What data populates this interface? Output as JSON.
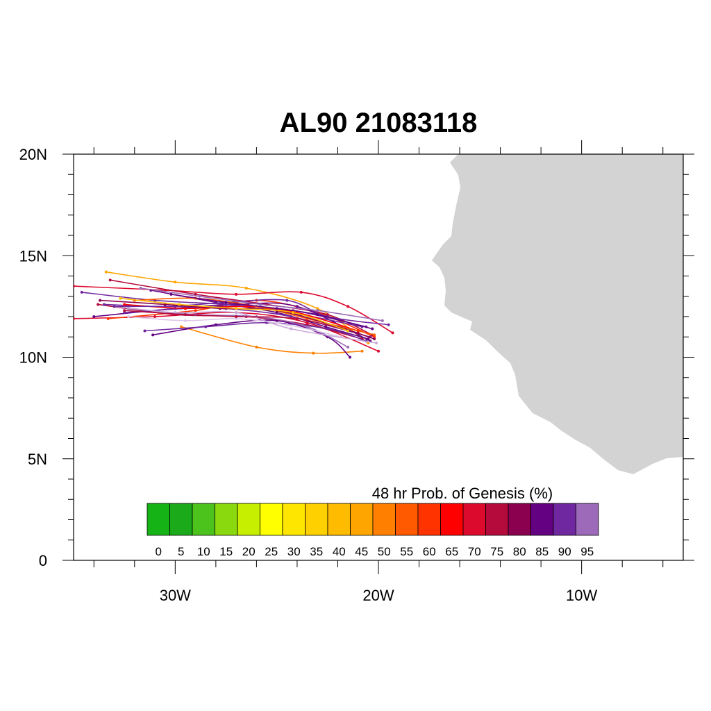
{
  "title": "AL90 21083118",
  "map": {
    "lat_range": [
      0,
      20
    ],
    "lon_range": [
      -35,
      -5
    ],
    "lat_labels": [
      {
        "lat": 20,
        "text": "20N"
      },
      {
        "lat": 15,
        "text": "15N"
      },
      {
        "lat": 10,
        "text": "10N"
      },
      {
        "lat": 5,
        "text": "5N"
      },
      {
        "lat": 0,
        "text": "0"
      }
    ],
    "lon_labels": [
      {
        "lon": -30,
        "text": "30W"
      },
      {
        "lon": -20,
        "text": "20W"
      },
      {
        "lon": -10,
        "text": "10W"
      }
    ],
    "land_color": "#d3d3d3",
    "land_region": "West Africa coast"
  },
  "colorbar": {
    "title": "48 hr Prob. of Genesis (%)",
    "labels": [
      "0",
      "5",
      "10",
      "15",
      "20",
      "25",
      "30",
      "35",
      "40",
      "45",
      "50",
      "55",
      "60",
      "65",
      "70",
      "75",
      "80",
      "85",
      "90",
      "95"
    ],
    "colors": [
      "#16b316",
      "#1aaa1a",
      "#4cc21c",
      "#8ad80e",
      "#c6ef00",
      "#ffff00",
      "#ffe600",
      "#ffd000",
      "#ffbb00",
      "#ffa500",
      "#ff8000",
      "#ff5a00",
      "#ff3300",
      "#ff0000",
      "#dc0a2d",
      "#b40a3c",
      "#8c0050",
      "#640082",
      "#7028a0",
      "#9c6ab9"
    ]
  },
  "chart_data": {
    "type": "map-tracks",
    "description_units": "lon (degrees E, negative = W), lat (degrees N)",
    "tracks": [
      {
        "color": "#ffa500",
        "points": [
          [
            -33.4,
            14.2
          ],
          [
            -30,
            13.7
          ],
          [
            -26.5,
            13.4
          ],
          [
            -23,
            12.4
          ],
          [
            -20.5,
            10.7
          ]
        ]
      },
      {
        "color": "#ff8000",
        "points": [
          [
            -29.7,
            11.5
          ],
          [
            -26,
            10.5
          ],
          [
            -23.2,
            10.2
          ],
          [
            -20.8,
            10.3
          ]
        ]
      },
      {
        "color": "#dc0a2d",
        "points": [
          [
            -35,
            13.5
          ],
          [
            -30.5,
            13.3
          ],
          [
            -27,
            13.1
          ],
          [
            -23.8,
            13.2
          ],
          [
            -21.5,
            12.5
          ],
          [
            -19.3,
            11.2
          ]
        ]
      },
      {
        "color": "#dc0a2d",
        "points": [
          [
            -35,
            11.9
          ],
          [
            -31,
            12.0
          ],
          [
            -27,
            12.2
          ],
          [
            -23.5,
            11.7
          ],
          [
            -20,
            10.3
          ]
        ]
      },
      {
        "color": "#ff3300",
        "points": [
          [
            -33.3,
            11.9
          ],
          [
            -29,
            12.3
          ],
          [
            -26,
            12.8
          ],
          [
            -23,
            12.2
          ],
          [
            -20.2,
            11.0
          ]
        ]
      },
      {
        "color": "#b40a3c",
        "points": [
          [
            -33.8,
            12.6
          ],
          [
            -30,
            12.1
          ],
          [
            -26.5,
            12.0
          ],
          [
            -23.5,
            11.6
          ],
          [
            -20.8,
            10.9
          ]
        ]
      },
      {
        "color": "#b40a3c",
        "points": [
          [
            -33.2,
            13.8
          ],
          [
            -29,
            13.1
          ],
          [
            -25.5,
            12.6
          ],
          [
            -22.5,
            12.1
          ],
          [
            -20.3,
            11.1
          ]
        ]
      },
      {
        "color": "#640082",
        "points": [
          [
            -31.1,
            11.1
          ],
          [
            -28,
            11.6
          ],
          [
            -25,
            11.8
          ],
          [
            -22.5,
            11.0
          ],
          [
            -21.4,
            10.0
          ]
        ]
      },
      {
        "color": "#640082",
        "points": [
          [
            -34,
            12.0
          ],
          [
            -30,
            12.4
          ],
          [
            -27,
            12.6
          ],
          [
            -24,
            12.5
          ],
          [
            -20.4,
            10.8
          ]
        ]
      },
      {
        "color": "#640082",
        "points": [
          [
            -31.2,
            13.3
          ],
          [
            -28,
            12.7
          ],
          [
            -25,
            12.2
          ],
          [
            -22.6,
            11.5
          ],
          [
            -20.5,
            10.9
          ]
        ]
      },
      {
        "color": "#7028a0",
        "points": [
          [
            -34.6,
            13.2
          ],
          [
            -31,
            12.8
          ],
          [
            -27.5,
            12.6
          ],
          [
            -24.2,
            12.3
          ],
          [
            -20.6,
            11.5
          ]
        ]
      },
      {
        "color": "#7028a0",
        "points": [
          [
            -31.5,
            11.3
          ],
          [
            -28.5,
            11.5
          ],
          [
            -25.5,
            11.7
          ],
          [
            -22.5,
            11.4
          ],
          [
            -20.6,
            10.8
          ]
        ]
      },
      {
        "color": "#7028a0",
        "points": [
          [
            -33.5,
            12.6
          ],
          [
            -30.5,
            12.5
          ],
          [
            -27.5,
            12.7
          ],
          [
            -24.5,
            12.8
          ],
          [
            -22.5,
            12.0
          ],
          [
            -19.5,
            11.6
          ]
        ]
      },
      {
        "color": "#7028a0",
        "points": [
          [
            -32.5,
            12.2
          ],
          [
            -29.5,
            12.4
          ],
          [
            -26.5,
            12.5
          ],
          [
            -23.8,
            12.1
          ],
          [
            -20.8,
            11.5
          ]
        ]
      },
      {
        "color": "#9c6ab9",
        "points": [
          [
            -32.3,
            12.4
          ],
          [
            -29,
            12.1
          ],
          [
            -26,
            12.0
          ],
          [
            -23.5,
            11.5
          ],
          [
            -21.5,
            10.5
          ]
        ]
      },
      {
        "color": "#9c6ab9",
        "points": [
          [
            -31.7,
            13.4
          ],
          [
            -28.8,
            13.0
          ],
          [
            -25.8,
            12.6
          ],
          [
            -23,
            12.3
          ],
          [
            -19.8,
            11.8
          ]
        ]
      },
      {
        "color": "#dcc8e8",
        "points": [
          [
            -32.3,
            12.0
          ],
          [
            -29.5,
            11.8
          ],
          [
            -27,
            11.9
          ],
          [
            -24.5,
            11.6
          ],
          [
            -21.8,
            11.0
          ]
        ]
      },
      {
        "color": "#c8a8d8",
        "points": [
          [
            -33,
            12.5
          ],
          [
            -30,
            12.2
          ],
          [
            -27,
            12.2
          ],
          [
            -24.3,
            11.4
          ],
          [
            -20.1,
            10.7
          ]
        ]
      },
      {
        "color": "#ff0000",
        "points": [
          [
            -32.5,
            12.6
          ],
          [
            -29.5,
            12.4
          ],
          [
            -26.5,
            12.5
          ],
          [
            -24,
            12.2
          ],
          [
            -21,
            11.3
          ]
        ]
      },
      {
        "color": "#ff5a00",
        "points": [
          [
            -32,
            12.8
          ],
          [
            -29,
            12.9
          ],
          [
            -26,
            12.5
          ],
          [
            -23.5,
            11.9
          ],
          [
            -20.2,
            11.1
          ]
        ]
      },
      {
        "color": "#640082",
        "points": [
          [
            -30.2,
            13.1
          ],
          [
            -27.5,
            12.7
          ],
          [
            -25,
            12.4
          ],
          [
            -23,
            12.1
          ],
          [
            -20.3,
            11.4
          ]
        ]
      },
      {
        "color": "#7028a0",
        "points": [
          [
            -33,
            12.5
          ],
          [
            -30,
            12.5
          ],
          [
            -27.5,
            12.4
          ],
          [
            -24.3,
            12.0
          ],
          [
            -20.4,
            11.0
          ]
        ]
      },
      {
        "color": "#b40a3c",
        "points": [
          [
            -32.5,
            12.3
          ],
          [
            -29.5,
            12.1
          ],
          [
            -27,
            12.0
          ],
          [
            -24,
            11.9
          ],
          [
            -21,
            11.2
          ]
        ]
      },
      {
        "color": "#8c0050",
        "points": [
          [
            -33.7,
            12.8
          ],
          [
            -30.5,
            12.6
          ],
          [
            -27.8,
            12.4
          ],
          [
            -25,
            12.3
          ],
          [
            -22,
            11.5
          ],
          [
            -20.2,
            10.9
          ]
        ]
      },
      {
        "color": "#ffbb00",
        "points": [
          [
            -32.7,
            12.9
          ],
          [
            -29.8,
            12.6
          ],
          [
            -27,
            12.4
          ],
          [
            -24.2,
            12.2
          ],
          [
            -21.5,
            11.3
          ]
        ]
      }
    ]
  }
}
